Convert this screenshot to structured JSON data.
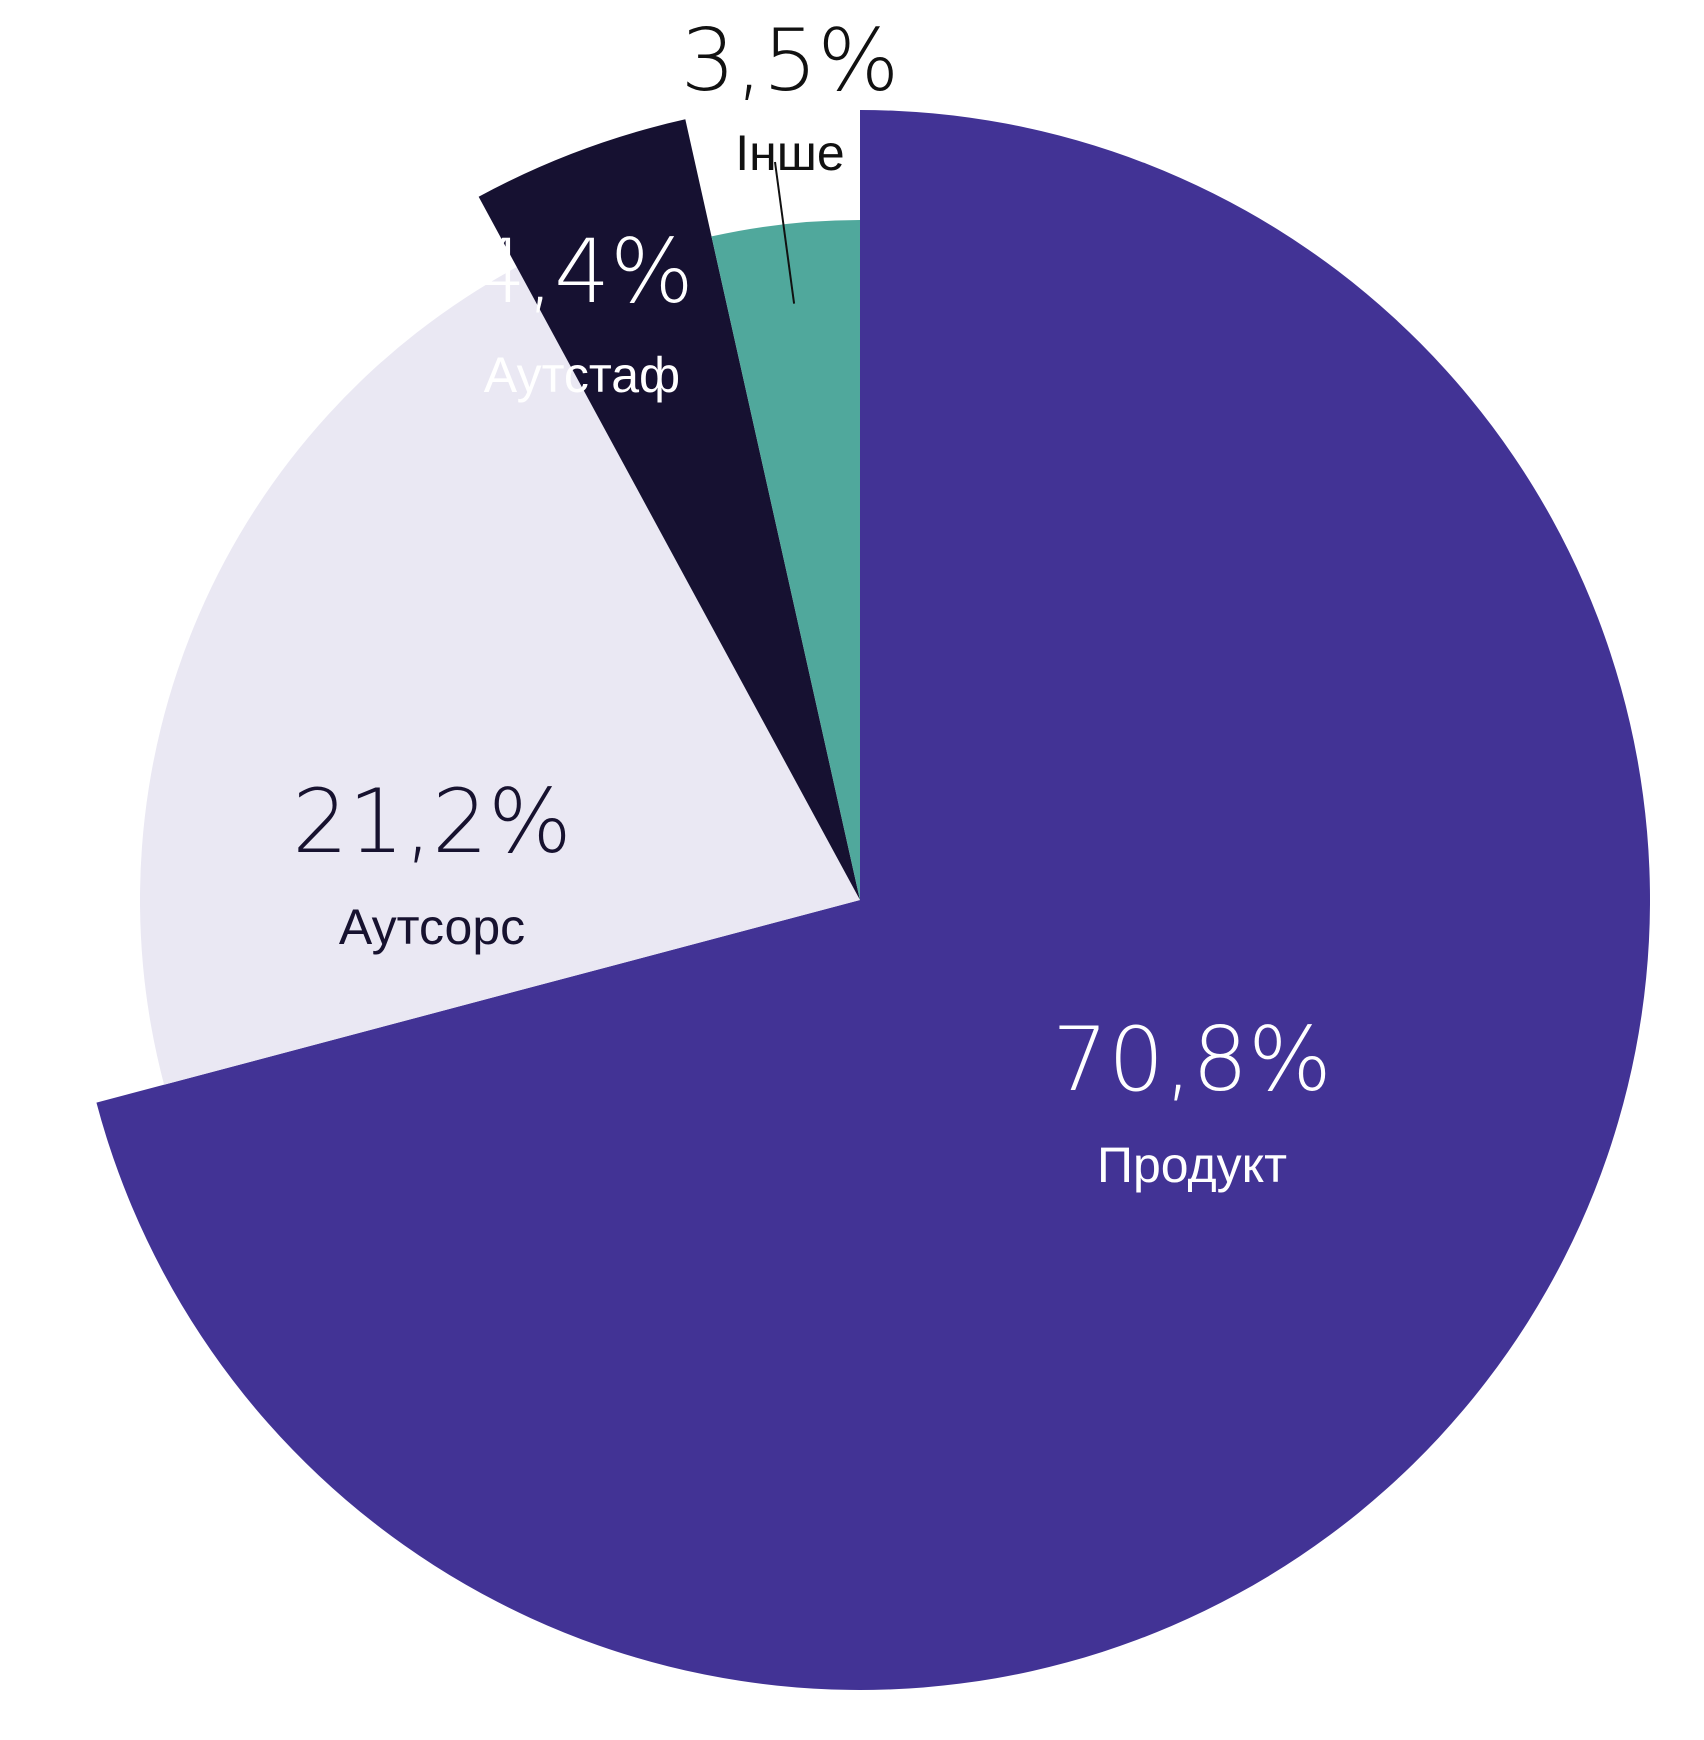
{
  "chart_data": {
    "type": "pie",
    "title": "",
    "slices": [
      {
        "label": "Продукт",
        "value": 70.8,
        "value_label": "70,8%",
        "color": "#423395",
        "text_color": "#ffffff",
        "exploded": false
      },
      {
        "label": "Аутсорс",
        "value": 21.2,
        "value_label": "21,2%",
        "color": "#eae8f3",
        "text_color": "#17122f",
        "exploded": true
      },
      {
        "label": "Аутстаф",
        "value": 4.4,
        "value_label": "4,4%",
        "color": "#161131",
        "text_color": "#ffffff",
        "exploded": true
      },
      {
        "label": "Інше",
        "value": 3.5,
        "value_label": "3,5%",
        "color": "#50a89c",
        "text_color": "#111111",
        "exploded": false,
        "label_outside": true
      }
    ],
    "start": "top",
    "direction": "clockwise",
    "legend": "none"
  }
}
